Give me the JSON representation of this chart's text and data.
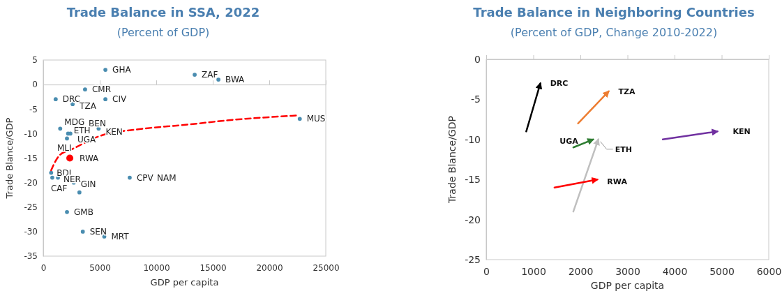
{
  "chart_data": [
    {
      "type": "scatter",
      "title": "Trade Balance in SSA, 2022",
      "subtitle": "(Percent of GDP)",
      "xlabel": "GDP per capita",
      "ylabel": "Trade Blance/GDP",
      "xlim": [
        0,
        25000
      ],
      "ylim": [
        -35,
        5
      ],
      "xticks": [
        0,
        5000,
        10000,
        15000,
        20000,
        25000
      ],
      "yticks": [
        -35,
        -30,
        -25,
        -20,
        -15,
        -10,
        -5,
        0,
        5
      ],
      "marker": "circle",
      "series": [
        {
          "color": "#4a8db0",
          "x": [
            5500,
            3700,
            1100,
            2600,
            5500,
            1500,
            3400,
            2200,
            4900,
            2400,
            2100,
            700,
            800,
            1300,
            2700,
            3200,
            2100,
            3500,
            5400,
            7650,
            9450,
            13400,
            15500,
            22700
          ],
          "values": [
            3,
            -1,
            -3,
            -4,
            -3,
            -9,
            -8,
            -10,
            -9,
            -10,
            -11,
            -18,
            -19,
            -19,
            -20,
            -22,
            -26,
            -30,
            -31,
            -19,
            -19,
            2,
            1,
            -7
          ],
          "value_labels": [
            "GHA",
            "CMR",
            "DRC",
            "TZA",
            "CIV",
            "MDG",
            "BEN",
            "ETH",
            "KEN",
            "UGA",
            "MLI",
            "BDI",
            "CAF",
            "NER",
            "GIN",
            null,
            "GMB",
            "SEN",
            "MRT",
            "CPV",
            "NAM",
            "ZAF",
            "BWA",
            "MUS"
          ]
        },
        {
          "color": "#ff0000",
          "x": [
            2350
          ],
          "values": [
            -15
          ],
          "value_labels": [
            "RWA"
          ]
        },
        {
          "type": "line",
          "color": "#ff0000",
          "line_style": "dashed",
          "marker": "none",
          "x": [
            700,
            1000,
            1500,
            2450,
            5000,
            8900,
            12200,
            17300,
            22600
          ],
          "values": [
            -17.5,
            -16,
            -14.3,
            -13.3,
            -10.5,
            -9,
            -8.3,
            -7.1,
            -6.3
          ]
        }
      ]
    },
    {
      "type": "line",
      "title": "Trade Balance in Neighboring Countries",
      "subtitle": "(Percent of GDP, Change 2010-2022)",
      "xlabel": "GDP per capita",
      "ylabel": "Trade Blance/GDP",
      "xlim": [
        0,
        6000
      ],
      "ylim": [
        -25,
        0
      ],
      "xticks": [
        0,
        1000,
        2000,
        3000,
        4000,
        5000,
        6000
      ],
      "yticks": [
        -25,
        -20,
        -15,
        -10,
        -5,
        0
      ],
      "marker": "none",
      "series": [
        {
          "name": "DRC",
          "color": "#000000",
          "x": [
            850,
            1150
          ],
          "values": [
            -9,
            -3
          ]
        },
        {
          "name": "TZA",
          "color": "#ed7d31",
          "x": [
            1950,
            2600
          ],
          "values": [
            -8,
            -4
          ]
        },
        {
          "name": "UGA",
          "color": "#2e7d32",
          "x": [
            1850,
            2270
          ],
          "values": [
            -11,
            -10
          ]
        },
        {
          "name": "ETH",
          "color": "#bfbfbf",
          "x": [
            1850,
            2380
          ],
          "values": [
            -19,
            -10
          ]
        },
        {
          "name": "RWA",
          "color": "#ff0000",
          "x": [
            1450,
            2360
          ],
          "values": [
            -16,
            -15
          ]
        },
        {
          "name": "KEN",
          "color": "#7030a0",
          "x": [
            3750,
            4910
          ],
          "values": [
            -10,
            -9
          ]
        }
      ]
    }
  ]
}
